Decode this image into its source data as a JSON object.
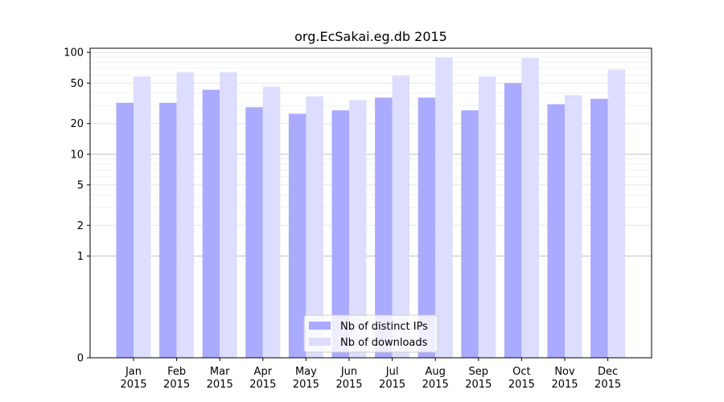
{
  "chart_data": {
    "type": "bar",
    "title": "org.EcSakai.eg.db 2015",
    "xlabel": "",
    "ylabel": "",
    "y_scale": "symlog",
    "ylim": [
      0,
      110
    ],
    "yticks": [
      0,
      1,
      2,
      5,
      10,
      20,
      50,
      100
    ],
    "categories": [
      [
        "Jan",
        "2015"
      ],
      [
        "Feb",
        "2015"
      ],
      [
        "Mar",
        "2015"
      ],
      [
        "Apr",
        "2015"
      ],
      [
        "May",
        "2015"
      ],
      [
        "Jun",
        "2015"
      ],
      [
        "Jul",
        "2015"
      ],
      [
        "Aug",
        "2015"
      ],
      [
        "Sep",
        "2015"
      ],
      [
        "Oct",
        "2015"
      ],
      [
        "Nov",
        "2015"
      ],
      [
        "Dec",
        "2015"
      ]
    ],
    "series": [
      {
        "name": "Nb of distinct IPs",
        "color": "#aaaaff",
        "values": [
          32,
          32,
          43,
          29,
          25,
          27,
          36,
          36,
          27,
          50,
          31,
          35
        ]
      },
      {
        "name": "Nb of downloads",
        "color": "#ddddff",
        "values": [
          58,
          64,
          64,
          46,
          37,
          34,
          59,
          89,
          58,
          88,
          38,
          68
        ]
      }
    ],
    "grid": true,
    "legend_position": "bottom-center"
  }
}
